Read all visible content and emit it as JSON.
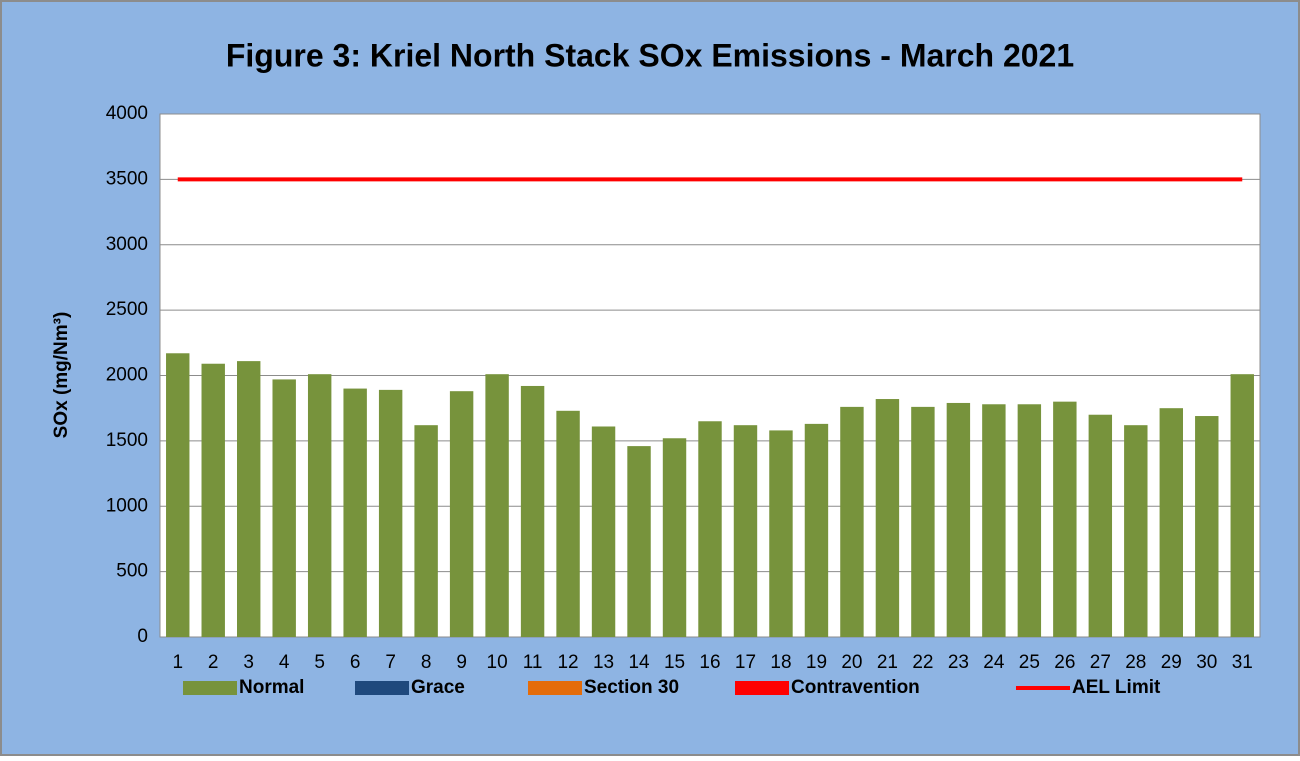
{
  "chart_data": {
    "type": "bar",
    "title": "Figure 3: Kriel North Stack SOx Emissions -  March 2021",
    "y_label": "SOx (mg/Nm³)",
    "categories": [
      1,
      2,
      3,
      4,
      5,
      6,
      7,
      8,
      9,
      10,
      11,
      12,
      13,
      14,
      15,
      16,
      17,
      18,
      19,
      20,
      21,
      22,
      23,
      24,
      25,
      26,
      27,
      28,
      29,
      30,
      31
    ],
    "series": [
      {
        "name": "Normal",
        "color": "#77933c",
        "values": [
          2170,
          2090,
          2110,
          1970,
          2010,
          1900,
          1890,
          1620,
          1880,
          2010,
          1920,
          1730,
          1610,
          1460,
          1520,
          1650,
          1620,
          1580,
          1630,
          1760,
          1820,
          1760,
          1790,
          1780,
          1780,
          1800,
          1700,
          1620,
          1750,
          1690,
          2010
        ]
      },
      {
        "name": "Grace",
        "color": "#1f497d",
        "values": [
          null,
          null,
          null,
          null,
          null,
          null,
          null,
          null,
          null,
          null,
          null,
          null,
          null,
          null,
          null,
          null,
          null,
          null,
          null,
          null,
          null,
          null,
          null,
          null,
          null,
          null,
          null,
          null,
          null,
          null,
          null
        ]
      },
      {
        "name": "Section 30",
        "color": "#e46c0a",
        "values": [
          null,
          null,
          null,
          null,
          null,
          null,
          null,
          null,
          null,
          null,
          null,
          null,
          null,
          null,
          null,
          null,
          null,
          null,
          null,
          null,
          null,
          null,
          null,
          null,
          null,
          null,
          null,
          null,
          null,
          null,
          null
        ]
      },
      {
        "name": "Contravention",
        "color": "#ff0000",
        "values": [
          null,
          null,
          null,
          null,
          null,
          null,
          null,
          null,
          null,
          null,
          null,
          null,
          null,
          null,
          null,
          null,
          null,
          null,
          null,
          null,
          null,
          null,
          null,
          null,
          null,
          null,
          null,
          null,
          null,
          null,
          null
        ]
      },
      {
        "name": "AEL Limit",
        "color": "#ff0000",
        "type": "line",
        "values": [
          3500,
          3500,
          3500,
          3500,
          3500,
          3500,
          3500,
          3500,
          3500,
          3500,
          3500,
          3500,
          3500,
          3500,
          3500,
          3500,
          3500,
          3500,
          3500,
          3500,
          3500,
          3500,
          3500,
          3500,
          3500,
          3500,
          3500,
          3500,
          3500,
          3500,
          3500
        ]
      }
    ],
    "ylim": [
      0,
      4000
    ],
    "yticks": [
      0,
      500,
      1000,
      1500,
      2000,
      2500,
      3000,
      3500,
      4000
    ],
    "grid": true,
    "legend": "bottom"
  }
}
